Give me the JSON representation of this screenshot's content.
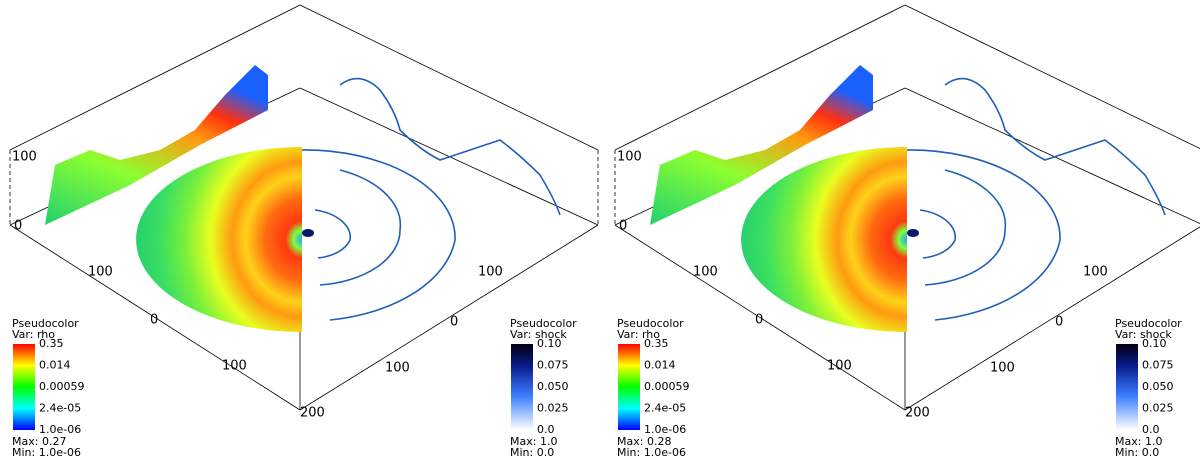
{
  "panels": [
    {
      "vertical_labels": [
        "100",
        "0"
      ],
      "left_edge_labels": [
        "100",
        "0",
        "100",
        "200"
      ],
      "right_edge_labels": [
        "100",
        "0",
        "100"
      ],
      "legend_rho": {
        "title": "Pseudocolor",
        "var": "Var: rho",
        "ticks": [
          "0.35",
          "0.014",
          "0.00059",
          "2.4e-05",
          "1.0e-06"
        ],
        "max": "Max: 0.27",
        "min": "Min: 1.0e-06"
      },
      "legend_shock": {
        "title": "Pseudocolor",
        "var": "Var: shock",
        "ticks": [
          "0.10",
          "0.075",
          "0.050",
          "0.025",
          "0.0"
        ],
        "max": "Max: 1.0",
        "min": "Min: 0.0"
      }
    },
    {
      "vertical_labels": [
        "100",
        "0"
      ],
      "left_edge_labels": [
        "100",
        "0",
        "100",
        "200"
      ],
      "right_edge_labels": [
        "100",
        "0",
        "100"
      ],
      "legend_rho": {
        "title": "Pseudocolor",
        "var": "Var: rho",
        "ticks": [
          "0.35",
          "0.014",
          "0.00059",
          "2.4e-05",
          "1.0e-06"
        ],
        "max": "Max: 0.28",
        "min": "Min: 1.0e-06"
      },
      "legend_shock": {
        "title": "Pseudocolor",
        "var": "Var: shock",
        "ticks": [
          "0.10",
          "0.075",
          "0.050",
          "0.025",
          "0.0"
        ],
        "max": "Max: 1.0",
        "min": "Min: 0.0"
      }
    }
  ]
}
